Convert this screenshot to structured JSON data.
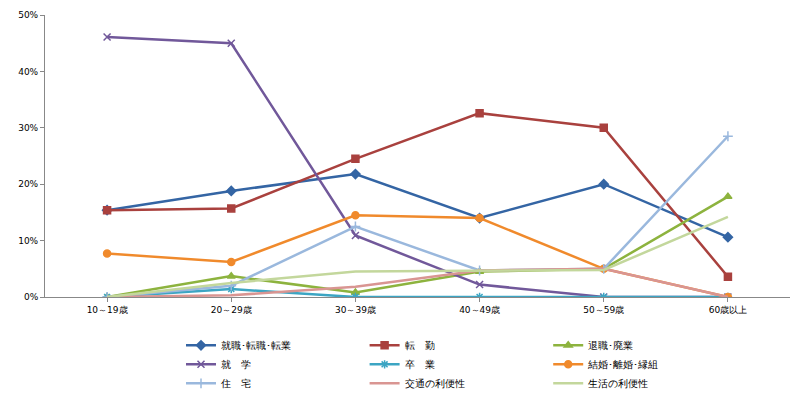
{
  "chart_data": {
    "type": "line",
    "categories": [
      "10～19歳",
      "20～29歳",
      "30～39歳",
      "40～49歳",
      "50～59歳",
      "60歳以上"
    ],
    "series": [
      {
        "name": "就職･転職･転業",
        "color": "#3465a4",
        "marker": "diamond",
        "values": [
          15.4,
          18.8,
          21.8,
          14.0,
          20.0,
          10.6
        ]
      },
      {
        "name": "転　勤",
        "color": "#a9413e",
        "marker": "square",
        "values": [
          15.4,
          15.7,
          24.5,
          32.6,
          30.0,
          3.6
        ]
      },
      {
        "name": "退職･廃業",
        "color": "#8db33e",
        "marker": "triangle",
        "values": [
          0,
          3.7,
          0.8,
          4.5,
          5.0,
          17.8
        ]
      },
      {
        "name": "就　学",
        "color": "#71589a",
        "marker": "x",
        "values": [
          46.1,
          45.0,
          10.9,
          2.2,
          0,
          0
        ]
      },
      {
        "name": "卒　業",
        "color": "#3ca5c3",
        "marker": "asterisk",
        "values": [
          0,
          1.4,
          0,
          0,
          0,
          0
        ]
      },
      {
        "name": "結婚･離婚･縁組",
        "color": "#f08a2c",
        "marker": "circle",
        "values": [
          7.7,
          6.2,
          14.5,
          14.0,
          5.0,
          0
        ]
      },
      {
        "name": "住　宅",
        "color": "#9ab8dd",
        "marker": "plus",
        "values": [
          0,
          2.0,
          12.5,
          4.7,
          5.0,
          28.5
        ]
      },
      {
        "name": "交通の利便性",
        "color": "#d99592",
        "marker": "none",
        "values": [
          0,
          0.3,
          1.8,
          4.7,
          5.0,
          0
        ]
      },
      {
        "name": "生活の利便性",
        "color": "#c3d79c",
        "marker": "none",
        "values": [
          0,
          2.5,
          4.5,
          4.7,
          4.8,
          14.2
        ]
      }
    ],
    "ylim": [
      0,
      50
    ],
    "yticks": [
      {
        "value": 0,
        "label": "0%"
      },
      {
        "value": 10,
        "label": "10%"
      },
      {
        "value": 20,
        "label": "20%"
      },
      {
        "value": 30,
        "label": "30%"
      },
      {
        "value": 40,
        "label": "40%"
      },
      {
        "value": 50,
        "label": "50%"
      }
    ],
    "grid": false,
    "legend": "bottom"
  }
}
